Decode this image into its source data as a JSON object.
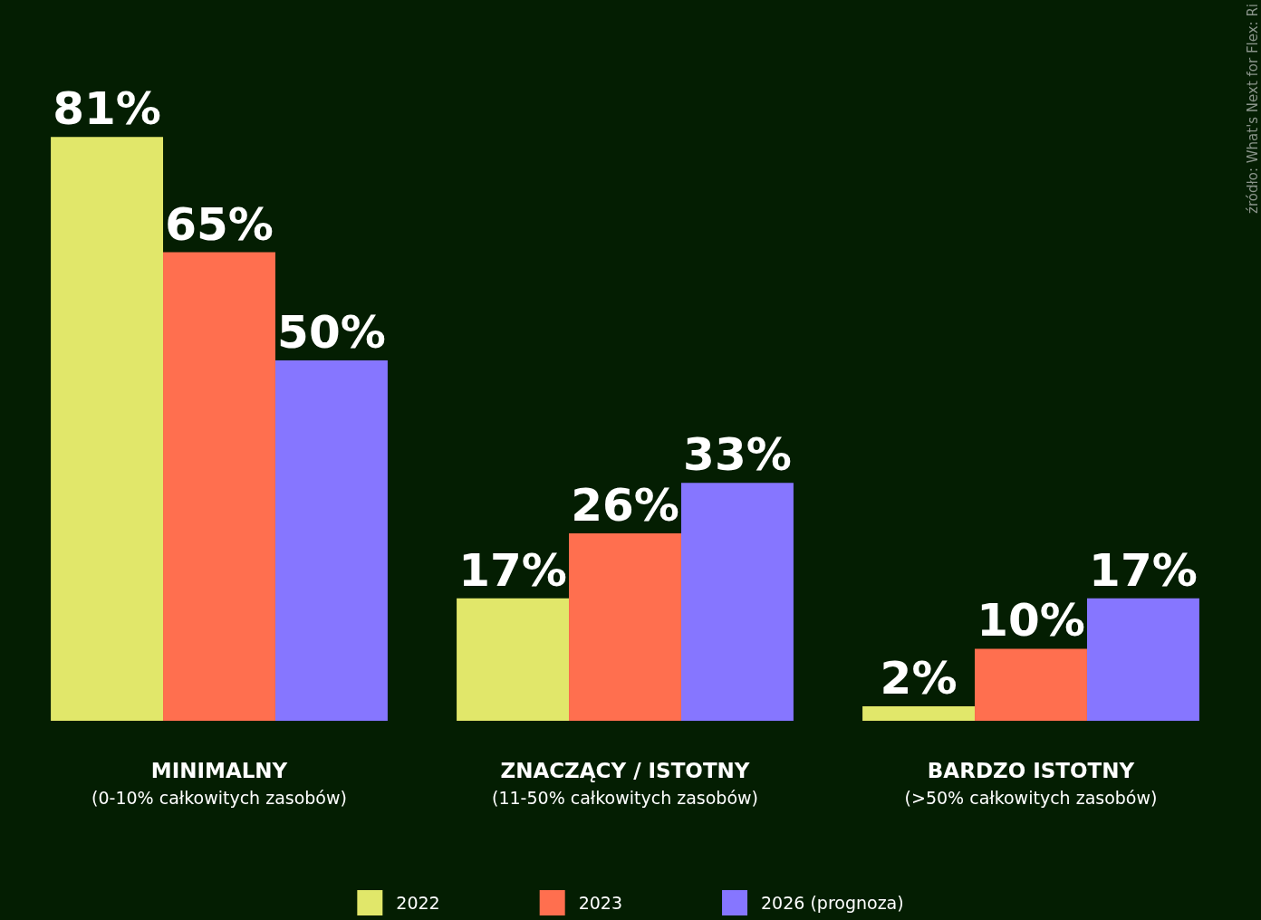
{
  "chart_data": {
    "type": "bar",
    "categories": [
      "MINIMALNY\n(0-10% całkowitych zasobów)",
      "ZNACZĄCY / ISTOTNY\n(11-50% całkowitych zasobów)",
      "BARDZO ISTOTNY\n(>50% całkowitych zasobów)"
    ],
    "series": [
      {
        "name": "2022",
        "color": "#e1e76a",
        "values": [
          81,
          17,
          2
        ],
        "value_labels": [
          "81%",
          "17%",
          "2%"
        ]
      },
      {
        "name": "2023",
        "color": "#ff6f4f",
        "values": [
          65,
          26,
          10
        ],
        "value_labels": [
          "65%",
          "26%",
          "10%"
        ]
      },
      {
        "name": "2026 (prognoza)",
        "color": "#8676ff",
        "values": [
          50,
          33,
          17
        ],
        "value_labels": [
          "50%",
          "33%",
          "17%"
        ]
      }
    ],
    "legend": "bottom",
    "annotations": [
      "źródło: What's Next for Flex: Ri"
    ]
  }
}
